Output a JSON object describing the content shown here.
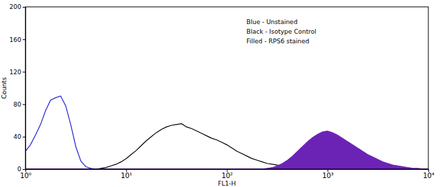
{
  "chart_data": {
    "type": "line",
    "x_label": "FL1-H",
    "y_label": "Counts",
    "log": "x",
    "grid": false,
    "legend": "top-right",
    "xlim": [
      1,
      10000
    ],
    "xticks": [
      {
        "value": 1,
        "label": "10⁰"
      },
      {
        "value": 10,
        "label": "10¹"
      },
      {
        "value": 100,
        "label": "10²"
      },
      {
        "value": 1000,
        "label": "10³"
      },
      {
        "value": 10000,
        "label": "10⁴"
      }
    ],
    "ylim": [
      0,
      200
    ],
    "yticks": [
      0,
      40,
      80,
      120,
      160,
      200
    ],
    "x": [
      1,
      1.122,
      1.259,
      1.413,
      1.585,
      1.778,
      1.995,
      2.239,
      2.512,
      2.818,
      3.162,
      3.548,
      3.981,
      4.467,
      5.012,
      5.623,
      6.31,
      7.079,
      7.943,
      8.913,
      10,
      11.22,
      12.59,
      14.13,
      15.85,
      17.78,
      19.95,
      22.39,
      25.12,
      28.18,
      31.62,
      35.48,
      39.81,
      44.67,
      50.12,
      56.23,
      63.1,
      70.79,
      79.43,
      89.13,
      100,
      112.2,
      125.9,
      141.3,
      158.5,
      177.8,
      199.5,
      223.9,
      251.2,
      281.8,
      316.2,
      354.8,
      398.1,
      446.7,
      501.2,
      562.3,
      631,
      707.9,
      794.3,
      891.3,
      1000,
      1122,
      1259,
      1413,
      1585,
      1778,
      1995,
      2239,
      2512,
      2818,
      3162,
      3548,
      3981,
      4467,
      5012,
      5623,
      6310,
      7079,
      7943,
      8913,
      10000
    ],
    "series": [
      {
        "name": "Blue - Unstained",
        "color": "#2323d6",
        "type": "line",
        "values": [
          22,
          30,
          42,
          55,
          72,
          85,
          88,
          90,
          78,
          55,
          28,
          10,
          3,
          1,
          0,
          0,
          0,
          0,
          0,
          0,
          0,
          0,
          0,
          0,
          0,
          0,
          0,
          0,
          0,
          0,
          0,
          0,
          0,
          0,
          0,
          0,
          0,
          0,
          0,
          0,
          0,
          0,
          0,
          0,
          0,
          0,
          0,
          0,
          0,
          0,
          0,
          0,
          0,
          0,
          0,
          0,
          0,
          0,
          0,
          0,
          0,
          0,
          0,
          0,
          0,
          0,
          0,
          0,
          0,
          0,
          0,
          0,
          0,
          0,
          0,
          0,
          0,
          0,
          0,
          0,
          0
        ]
      },
      {
        "name": "Black - Isotype Control",
        "color": "#000000",
        "type": "line",
        "values": [
          0,
          0,
          0,
          0,
          0,
          0,
          0,
          0,
          0,
          0,
          0,
          0,
          0,
          0,
          0,
          1,
          2,
          4,
          6,
          9,
          13,
          18,
          23,
          29,
          35,
          40,
          45,
          49,
          52,
          54,
          55,
          56,
          52,
          50,
          47,
          44,
          41,
          38,
          36,
          33,
          30,
          26,
          22,
          19,
          16,
          13,
          11,
          9,
          7,
          6,
          5,
          4,
          3,
          2,
          2,
          1,
          1,
          0,
          0,
          0,
          0,
          0,
          0,
          0,
          0,
          0,
          0,
          0,
          0,
          0,
          0,
          0,
          0,
          0,
          0,
          0,
          0,
          0,
          0,
          0,
          0
        ]
      },
      {
        "name": "Filled - RPS6 stained",
        "color": "#6b23b5",
        "type": "area",
        "values": [
          0,
          0,
          0,
          0,
          0,
          0,
          0,
          0,
          0,
          0,
          0,
          0,
          0,
          0,
          0,
          0,
          0,
          0,
          0,
          0,
          0,
          0,
          0,
          0,
          0,
          0,
          0,
          0,
          0,
          0,
          0,
          0,
          0,
          0,
          0,
          0,
          0,
          0,
          0,
          0,
          0,
          0,
          0,
          0,
          0,
          0,
          0,
          0,
          1,
          2,
          4,
          7,
          11,
          16,
          22,
          28,
          34,
          39,
          43,
          46,
          47,
          45,
          42,
          38,
          34,
          30,
          26,
          22,
          18,
          15,
          12,
          9,
          7,
          5,
          4,
          3,
          2,
          1,
          1,
          0,
          0
        ]
      }
    ]
  }
}
